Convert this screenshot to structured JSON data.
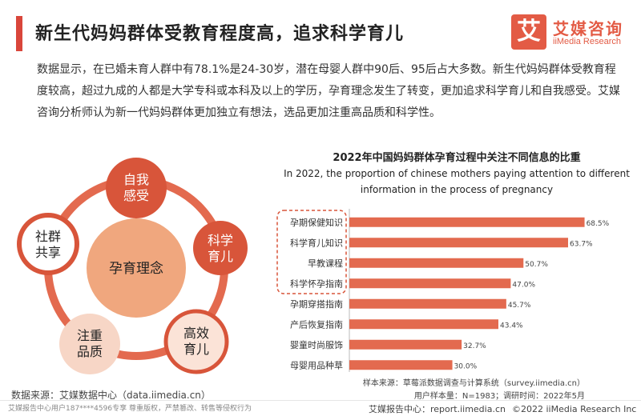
{
  "header": {
    "title": "新生代妈妈群体受教育程度高，追求科学育儿",
    "logo_cn": "艾媒咨询",
    "logo_en": "iiMedia Research",
    "logo_mark": "艾"
  },
  "body_text": "数据显示，在已婚未育人群中有78.1%是24-30岁，潜在母婴人群中90后、95后占大多数。新生代妈妈群体受教育程度较高，超过九成的人都是大学专科或本科及以上的学历，孕育理念发生了转变，更加追求科学育儿和自我感受。艾媒咨询分析师认为新一代妈妈群体更加独立有想法，选品更加注重高品质和科学性。",
  "cycle_diagram": {
    "center": "孕育理念",
    "nodes": [
      {
        "line1": "自我",
        "line2": "感受"
      },
      {
        "line1": "科学",
        "line2": "育儿"
      },
      {
        "line1": "高效",
        "line2": "育儿"
      },
      {
        "line1": "注重",
        "line2": "品质"
      },
      {
        "line1": "社群",
        "line2": "共享"
      }
    ]
  },
  "chart_data": {
    "type": "bar",
    "orientation": "horizontal",
    "title": "2022年中国妈妈群体孕育过程中关注不同信息的比重",
    "subtitle_line1": "In 2022, the proportion of chinese mothers paying attention to different",
    "subtitle_line2": "information in the process of pregnancy",
    "categories": [
      "孕期保健知识",
      "科学育儿知识",
      "早教课程",
      "科学怀孕指南",
      "孕期穿搭指南",
      "产后恢复指南",
      "婴童时尚服饰",
      "母婴用品种草"
    ],
    "values": [
      68.5,
      63.7,
      50.7,
      47.0,
      45.7,
      43.4,
      32.7,
      30.0
    ],
    "value_labels": [
      "68.5%",
      "63.7%",
      "50.7%",
      "47.0%",
      "45.7%",
      "43.4%",
      "32.7%",
      "30.0%"
    ],
    "highlighted_categories": 4,
    "bar_color": "#e36a4f",
    "xlim": [
      0,
      70
    ],
    "grid": false,
    "legend": "none"
  },
  "source": {
    "sample_source": "样本来源：草莓派数据调查与计算系统（survey.iimedia.cn）",
    "sample_info": "用户样本量：N=1983；调研时间：2022年5月",
    "data_source": "数据来源：艾媒数据中心（data.iimedia.cn）"
  },
  "footer": {
    "left": "艾媒报告中心用户187****4596专享 尊重版权，严禁篡改、转售等侵权行为",
    "right_site": "艾媒报告中心：report.iimedia.cn",
    "right_copy": "©2022  iiMedia Research  Inc"
  },
  "colors": {
    "accent": "#d9463b",
    "bar": "#e36a4f",
    "dark_orange": "#c9573a"
  }
}
